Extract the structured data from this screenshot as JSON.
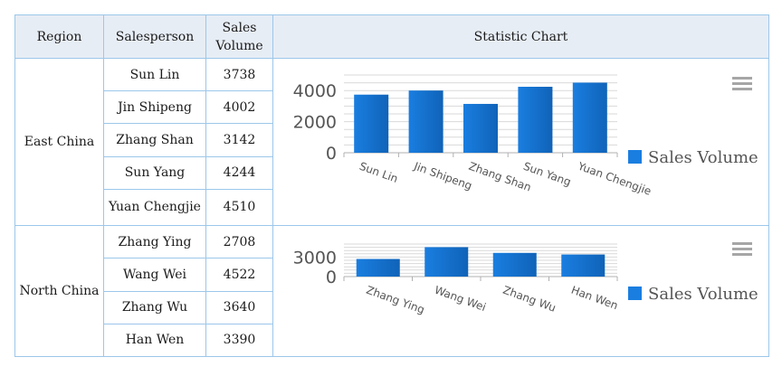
{
  "table": {
    "headers": {
      "region": "Region",
      "salesperson": "Salesperson",
      "sales_volume_line1": "Sales",
      "sales_volume_line2": "Volume",
      "statistic_chart": "Statistic Chart"
    },
    "groups": [
      {
        "region": "East China",
        "rows": [
          {
            "salesperson": "Sun Lin",
            "sales_volume": "3738"
          },
          {
            "salesperson": "Jin Shipeng",
            "sales_volume": "4002"
          },
          {
            "salesperson": "Zhang Shan",
            "sales_volume": "3142"
          },
          {
            "salesperson": "Sun Yang",
            "sales_volume": "4244"
          },
          {
            "salesperson": "Yuan Chengjie",
            "sales_volume": "4510"
          }
        ]
      },
      {
        "region": "North China",
        "rows": [
          {
            "salesperson": "Zhang Ying",
            "sales_volume": "2708"
          },
          {
            "salesperson": "Wang Wei",
            "sales_volume": "4522"
          },
          {
            "salesperson": "Zhang Wu",
            "sales_volume": "3640"
          },
          {
            "salesperson": "Han Wen",
            "sales_volume": "3390"
          }
        ]
      }
    ]
  },
  "menu_icon": "hamburger-menu-icon",
  "colors": {
    "bar": "#1a7ee0",
    "bar_dark": "#1063b8",
    "gridline": "#d9d9d9",
    "border": "#9cc7ea"
  },
  "chart_data": [
    {
      "type": "bar",
      "categories": [
        "Sun Lin",
        "Jin Shipeng",
        "Zhang Shan",
        "Sun Yang",
        "Yuan Chengjie"
      ],
      "series": [
        {
          "name": "Sales Volume",
          "values": [
            3738,
            4002,
            3142,
            4244,
            4510
          ]
        }
      ],
      "yticks": [
        "0",
        "2000",
        "4000"
      ],
      "ylim": [
        0,
        5000
      ],
      "grid": true,
      "legend": "right"
    },
    {
      "type": "bar",
      "categories": [
        "Zhang Ying",
        "Wang Wei",
        "Zhang Wu",
        "Han Wen"
      ],
      "series": [
        {
          "name": "Sales Volume",
          "values": [
            2708,
            4522,
            3640,
            3390
          ]
        }
      ],
      "yticks": [
        "0",
        "3000"
      ],
      "ylim": [
        0,
        5000
      ],
      "grid": true,
      "legend": "right"
    }
  ]
}
